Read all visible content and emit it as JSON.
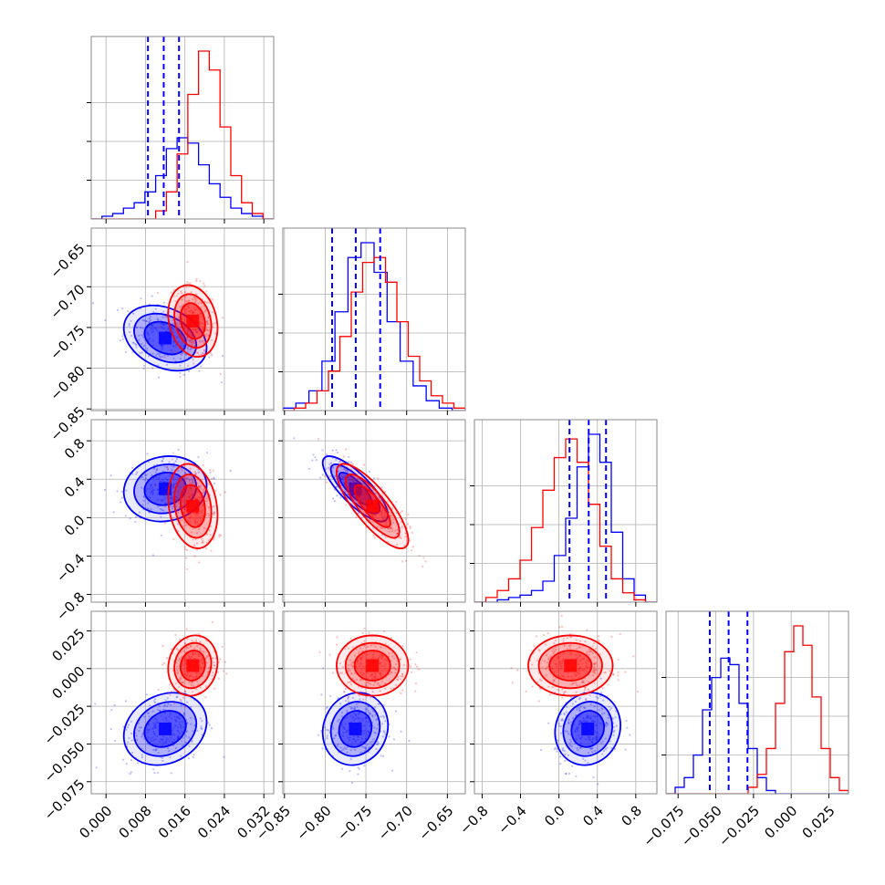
{
  "chart_data": {
    "type": "corner",
    "grid": true,
    "colors": {
      "series_a": "#0000ff",
      "series_b": "#ff0000",
      "grid": "#b0b0b0",
      "axes": "#888888"
    },
    "series": [
      {
        "color": "#0000ff",
        "p0": {
          "mean": 0.012,
          "sd": 0.0042
        },
        "p1": {
          "mean": -0.763,
          "sd": 0.02
        },
        "p2": {
          "mean": 0.3,
          "sd": 0.17
        },
        "p3": {
          "mean": -0.04,
          "sd": 0.012
        },
        "corr": {
          "p0_p1": -0.3,
          "p0_p2": 0.1,
          "p0_p3": 0.2,
          "p1_p2": -0.8,
          "p1_p3": 0.1,
          "p2_p3": 0.1
        },
        "quantiles": {
          "p0": [
            0.0085,
            0.0117,
            0.0148
          ],
          "p1": [
            -0.7915,
            -0.7625,
            -0.7325
          ],
          "p2": [
            0.11,
            0.31,
            0.49
          ],
          "p3": [
            -0.054,
            -0.0415,
            -0.029
          ]
        },
        "hist": {
          "p0": [
            0,
            1,
            2,
            4,
            6,
            10,
            16,
            26,
            30,
            28,
            20,
            13,
            8,
            4,
            2,
            1,
            0
          ],
          "p1": [
            1,
            3,
            8,
            20,
            40,
            62,
            68,
            56,
            36,
            20,
            10,
            4,
            1,
            0
          ],
          "p2": [
            0,
            0,
            1,
            2,
            3,
            5,
            9,
            20,
            36,
            58,
            72,
            60,
            30,
            10,
            3,
            0
          ],
          "p3": [
            0,
            2,
            5,
            12,
            26,
            36,
            42,
            40,
            28,
            14,
            5,
            1,
            0,
            0,
            0,
            0,
            0,
            0,
            0,
            0
          ]
        }
      },
      {
        "color": "#ff0000",
        "p0": {
          "mean": 0.0176,
          "sd": 0.0025
        },
        "p1": {
          "mean": -0.742,
          "sd": 0.022
        },
        "p2": {
          "mean": 0.12,
          "sd": 0.22
        },
        "p3": {
          "mean": 0.002,
          "sd": 0.01
        },
        "corr": {
          "p0_p1": -0.2,
          "p0_p2": -0.2,
          "p0_p3": 0.1,
          "p1_p2": -0.8,
          "p1_p3": 0.0,
          "p2_p3": 0.0
        },
        "quantiles": {},
        "hist": {
          "p0": [
            0,
            0,
            0,
            0,
            0,
            0,
            3,
            10,
            24,
            46,
            62,
            55,
            34,
            16,
            6,
            2,
            0
          ],
          "p1": [
            0,
            1,
            3,
            8,
            16,
            30,
            48,
            60,
            62,
            52,
            36,
            22,
            12,
            6,
            3,
            1
          ],
          "p2": [
            0,
            2,
            5,
            10,
            18,
            32,
            48,
            62,
            70,
            60,
            42,
            24,
            10,
            4,
            1,
            0
          ],
          "p3": [
            0,
            0,
            0,
            0,
            0,
            0,
            0,
            0,
            0,
            2,
            6,
            14,
            28,
            44,
            52,
            46,
            30,
            14,
            5,
            1
          ]
        }
      }
    ],
    "panels": {
      "p0": {
        "range": [
          -0.003,
          0.034
        ],
        "ticks": [
          "0.000",
          "0.008",
          "0.016",
          "0.024",
          "0.032"
        ],
        "tick_values": [
          0,
          0.008,
          0.016,
          0.024,
          0.032
        ]
      },
      "p1": {
        "range": [
          -0.852,
          -0.628
        ],
        "ticks": [
          "−0.85",
          "−0.80",
          "−0.75",
          "−0.70",
          "−0.65"
        ],
        "tick_values": [
          -0.85,
          -0.8,
          -0.75,
          -0.7,
          -0.65
        ]
      },
      "p2": {
        "range": [
          -0.88,
          1.02
        ],
        "ticks": [
          "−0.8",
          "−0.4",
          "0.0",
          "0.4",
          "0.8"
        ],
        "tick_values": [
          -0.8,
          -0.4,
          0,
          0.4,
          0.8
        ]
      },
      "p3": {
        "range": [
          -0.083,
          0.038
        ],
        "ticks": [
          "−0.075",
          "−0.050",
          "−0.025",
          "0.000",
          "0.025"
        ],
        "tick_values": [
          -0.075,
          -0.05,
          -0.025,
          0,
          0.025
        ]
      }
    }
  }
}
